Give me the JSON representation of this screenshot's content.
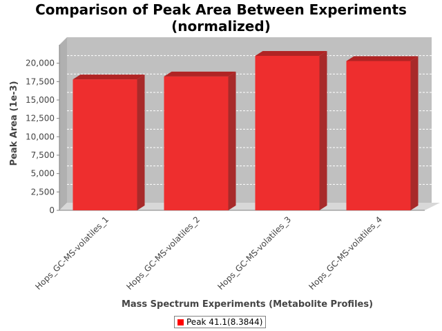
{
  "chart_data": {
    "type": "bar",
    "title_line1": "Comparison of Peak Area Between Experiments",
    "title_line2": "(normalized)",
    "xlabel": "Mass Spectrum Experiments (Metabolite Profiles)",
    "ylabel": "Peak Area (1e-3)",
    "categories": [
      "Hops_GC-MS-volatiles_1",
      "Hops_GC-MS-volatiles_2",
      "Hops_GC-MS-volatiles_3",
      "Hops_GC-MS-volatiles_4"
    ],
    "series": [
      {
        "name": "Peak 41.1(8.3844)",
        "values": [
          17800,
          18200,
          21000,
          20300
        ]
      }
    ],
    "ylim": [
      0,
      22500
    ],
    "yticks": [
      0,
      2500,
      5000,
      7500,
      10000,
      12500,
      15000,
      17500,
      20000
    ],
    "ytick_labels": [
      "0",
      "2,500",
      "5,000",
      "7,500",
      "10,000",
      "12,500",
      "15,000",
      "17,500",
      "20,000"
    ],
    "grid": true,
    "legend_position": "bottom",
    "colors": {
      "bar": "#ee2e2e",
      "bar_top": "#b02424",
      "bar_side": "#a82a2a",
      "plot_bg": "#c0c0c0",
      "grid": "#ffffff"
    }
  }
}
